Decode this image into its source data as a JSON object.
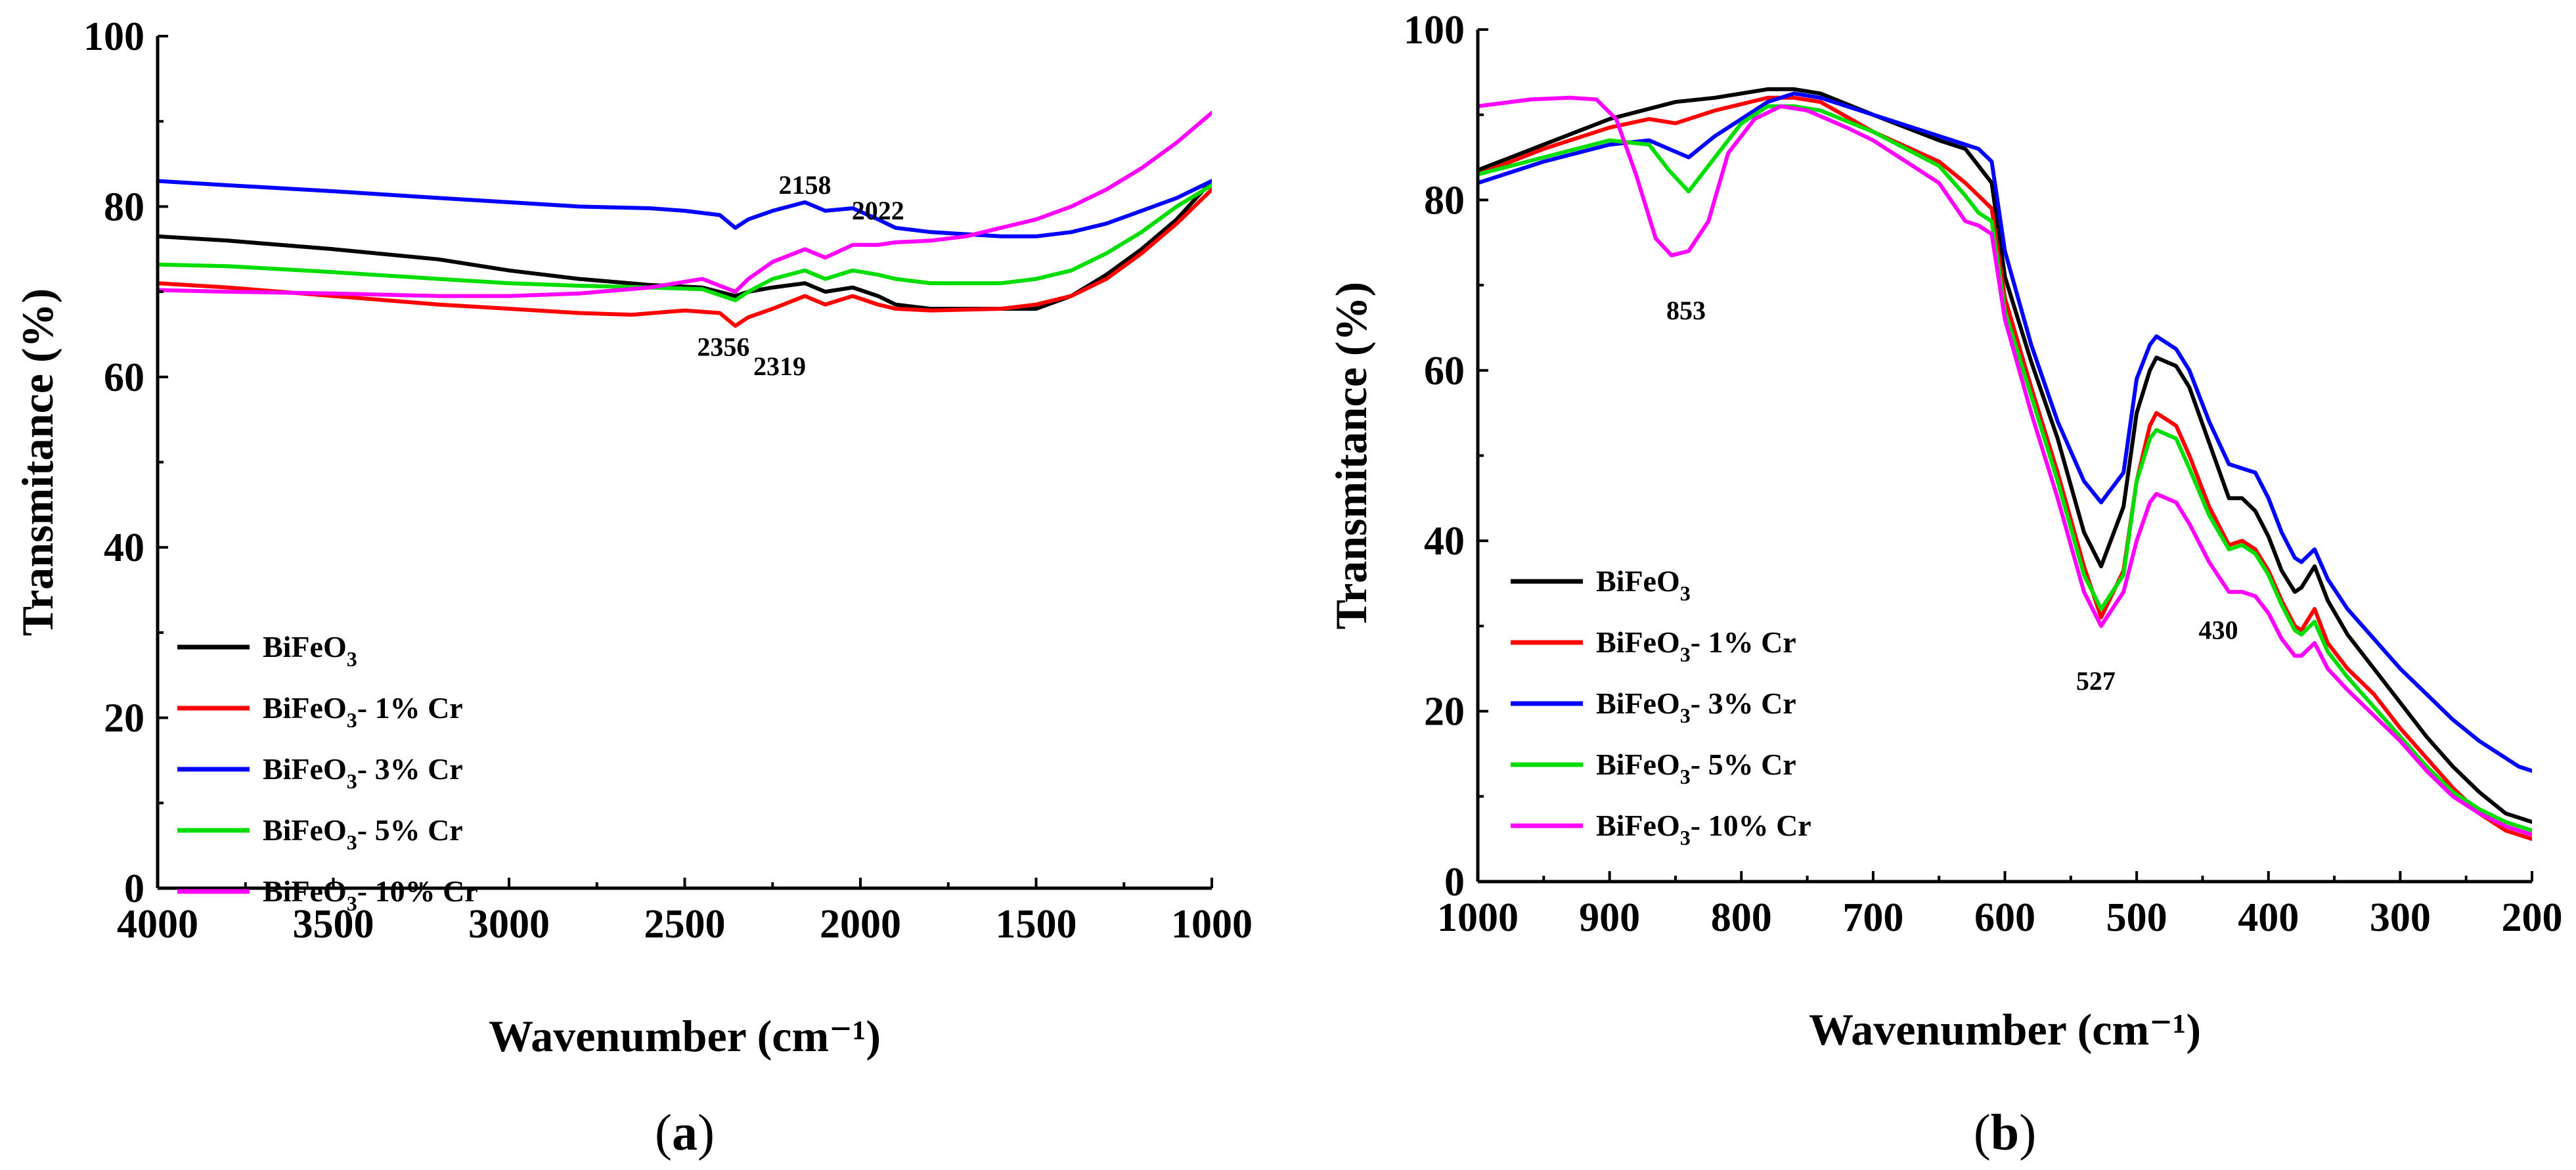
{
  "chart_data": [
    {
      "id": "a",
      "type": "line",
      "panel_label": "a",
      "xlabel": "Wavenumber (cm⁻¹)",
      "ylabel": "Transmitance (%)",
      "xlim": [
        4000,
        1000
      ],
      "ylim": [
        0,
        100
      ],
      "xticks": [
        4000,
        3500,
        3000,
        2500,
        2000,
        1500,
        1000
      ],
      "yticks": [
        0,
        20,
        40,
        60,
        80,
        100
      ],
      "legend_position": "bottom-left",
      "series": [
        {
          "name": "BiFeO3",
          "label_base": "BiFeO",
          "label_sub": "3",
          "label_suffix": "",
          "color": "#000000",
          "x": [
            4000,
            3800,
            3500,
            3200,
            3000,
            2800,
            2600,
            2450,
            2356,
            2319,
            2250,
            2158,
            2100,
            2022,
            1950,
            1900,
            1800,
            1600,
            1500,
            1400,
            1300,
            1200,
            1100,
            1000
          ],
          "y": [
            76.5,
            76,
            75,
            73.8,
            72.5,
            71.5,
            70.8,
            70.5,
            69.5,
            70,
            70.5,
            71,
            70,
            70.5,
            69.5,
            68.5,
            68,
            68,
            68,
            69.5,
            72,
            75,
            78.5,
            83
          ]
        },
        {
          "name": "BiFeO3- 1% Cr",
          "label_base": "BiFeO",
          "label_sub": "3",
          "label_suffix": "- 1% Cr",
          "color": "#ff0000",
          "x": [
            4000,
            3800,
            3500,
            3200,
            3000,
            2800,
            2650,
            2500,
            2400,
            2356,
            2319,
            2250,
            2158,
            2100,
            2022,
            1950,
            1900,
            1800,
            1600,
            1500,
            1400,
            1300,
            1200,
            1100,
            1000
          ],
          "y": [
            71,
            70.5,
            69.5,
            68.5,
            68,
            67.5,
            67.3,
            67.8,
            67.5,
            66,
            67,
            68,
            69.5,
            68.5,
            69.5,
            68.5,
            68,
            67.8,
            68,
            68.5,
            69.5,
            71.5,
            74.5,
            78,
            82
          ]
        },
        {
          "name": "BiFeO3- 3% Cr",
          "label_base": "BiFeO",
          "label_sub": "3",
          "label_suffix": "- 3% Cr",
          "color": "#0000ff",
          "x": [
            4000,
            3800,
            3500,
            3200,
            3000,
            2800,
            2600,
            2500,
            2400,
            2356,
            2319,
            2250,
            2158,
            2100,
            2022,
            1950,
            1900,
            1800,
            1600,
            1500,
            1400,
            1300,
            1200,
            1100,
            1000
          ],
          "y": [
            83,
            82.5,
            81.8,
            81,
            80.5,
            80,
            79.8,
            79.5,
            79,
            77.5,
            78.5,
            79.5,
            80.5,
            79.5,
            79.8,
            78.5,
            77.5,
            77,
            76.5,
            76.5,
            77,
            78,
            79.5,
            81,
            83
          ]
        },
        {
          "name": "BiFeO3- 5% Cr",
          "label_base": "BiFeO",
          "label_sub": "3",
          "label_suffix": "- 5% Cr",
          "color": "#00dd00",
          "x": [
            4000,
            3800,
            3500,
            3200,
            3000,
            2800,
            2600,
            2450,
            2356,
            2319,
            2250,
            2158,
            2100,
            2022,
            1950,
            1900,
            1800,
            1600,
            1500,
            1400,
            1300,
            1200,
            1100,
            1000
          ],
          "y": [
            73.2,
            73,
            72.3,
            71.5,
            71,
            70.7,
            70.5,
            70.3,
            69,
            70,
            71.5,
            72.5,
            71.5,
            72.5,
            72,
            71.5,
            71,
            71,
            71.5,
            72.5,
            74.5,
            77,
            80,
            82.5
          ]
        },
        {
          "name": "BiFeO3- 10% Cr",
          "label_base": "BiFeO",
          "label_sub": "3",
          "label_suffix": "- 10% Cr",
          "color": "#ff00ff",
          "x": [
            4000,
            3800,
            3500,
            3200,
            3000,
            2800,
            2600,
            2450,
            2356,
            2319,
            2250,
            2158,
            2100,
            2022,
            1950,
            1900,
            1800,
            1700,
            1600,
            1500,
            1400,
            1300,
            1200,
            1100,
            1000
          ],
          "y": [
            70.2,
            70,
            69.8,
            69.5,
            69.5,
            69.8,
            70.5,
            71.5,
            70,
            71.5,
            73.5,
            75,
            74,
            75.5,
            75.5,
            75.8,
            76,
            76.5,
            77.5,
            78.5,
            80,
            82,
            84.5,
            87.5,
            91
          ]
        }
      ],
      "annotations": [
        {
          "text": "2158",
          "x": 2158,
          "y": 81.5
        },
        {
          "text": "2022",
          "x": 1950,
          "y": 78.5
        },
        {
          "text": "2356",
          "x": 2390,
          "y": 62.5
        },
        {
          "text": "2319",
          "x": 2230,
          "y": 60.2
        }
      ]
    },
    {
      "id": "b",
      "type": "line",
      "panel_label": "b",
      "xlabel": "Wavenumber (cm⁻¹)",
      "ylabel": "Transmitance (%)",
      "xlim": [
        1000,
        200
      ],
      "ylim": [
        0,
        100
      ],
      "xticks": [
        1000,
        900,
        800,
        700,
        600,
        500,
        400,
        300,
        200
      ],
      "yticks": [
        0,
        20,
        40,
        60,
        80,
        100
      ],
      "legend_position": "bottom-left",
      "series": [
        {
          "name": "BiFeO3",
          "label_base": "BiFeO",
          "label_sub": "3",
          "label_suffix": "",
          "color": "#000000",
          "x": [
            1000,
            950,
            900,
            850,
            820,
            780,
            760,
            740,
            700,
            650,
            630,
            620,
            610,
            600,
            580,
            560,
            540,
            527,
            510,
            500,
            490,
            485,
            470,
            460,
            445,
            430,
            420,
            410,
            400,
            390,
            380,
            375,
            365,
            355,
            340,
            320,
            300,
            280,
            260,
            240,
            220,
            210,
            200
          ],
          "y": [
            83.5,
            86.5,
            89.5,
            91.5,
            92,
            93,
            93,
            92.5,
            90,
            87,
            86,
            84,
            82,
            71,
            61,
            52,
            41,
            37,
            44,
            55,
            60,
            61.5,
            60.5,
            58,
            51.5,
            45,
            45,
            43.5,
            40.5,
            36.5,
            34,
            34.5,
            37,
            33,
            29,
            25,
            21,
            17,
            13.5,
            10.5,
            8,
            7.5,
            7
          ]
        },
        {
          "name": "BiFeO3- 1% Cr",
          "label_base": "BiFeO",
          "label_sub": "3",
          "label_suffix": "- 1% Cr",
          "color": "#ff0000",
          "x": [
            1000,
            950,
            900,
            870,
            850,
            820,
            780,
            760,
            740,
            700,
            650,
            630,
            620,
            610,
            600,
            580,
            560,
            540,
            527,
            510,
            500,
            490,
            485,
            470,
            460,
            445,
            430,
            420,
            410,
            400,
            390,
            380,
            375,
            365,
            355,
            340,
            320,
            300,
            280,
            260,
            240,
            220,
            210,
            200
          ],
          "y": [
            83,
            86,
            88.5,
            89.5,
            89,
            90.5,
            92,
            92,
            91.5,
            88,
            84.5,
            82,
            80.5,
            79,
            68.5,
            58,
            48,
            37,
            31,
            36.5,
            47,
            53.5,
            55,
            53.5,
            50,
            44,
            39.5,
            40,
            39,
            36.5,
            33,
            30,
            29.5,
            32,
            28,
            25,
            22,
            18,
            14.5,
            11,
            8,
            6,
            5.5,
            5
          ]
        },
        {
          "name": "BiFeO3- 3% Cr",
          "label_base": "BiFeO",
          "label_sub": "3",
          "label_suffix": "- 3% Cr",
          "color": "#0000ff",
          "x": [
            1000,
            950,
            900,
            870,
            855,
            840,
            820,
            800,
            780,
            760,
            740,
            700,
            650,
            630,
            620,
            610,
            600,
            580,
            560,
            540,
            527,
            510,
            500,
            490,
            485,
            470,
            460,
            445,
            430,
            420,
            410,
            400,
            390,
            380,
            375,
            365,
            355,
            340,
            320,
            300,
            280,
            260,
            240,
            220,
            210,
            200
          ],
          "y": [
            82,
            84.5,
            86.5,
            87,
            86,
            85,
            87.5,
            89.5,
            91.5,
            92.5,
            92,
            90,
            87.5,
            86.5,
            86,
            84.5,
            74,
            63,
            54,
            47,
            44.5,
            48,
            59,
            63,
            64,
            62.5,
            60,
            54,
            49,
            48.5,
            48,
            45,
            41,
            38,
            37.5,
            39,
            35.5,
            32,
            28.5,
            25,
            22,
            19,
            16.5,
            14.5,
            13.5,
            13
          ]
        },
        {
          "name": "BiFeO3- 5% Cr",
          "label_base": "BiFeO",
          "label_sub": "3",
          "label_suffix": "- 5% Cr",
          "color": "#00dd00",
          "x": [
            1000,
            950,
            900,
            870,
            855,
            840,
            820,
            800,
            780,
            760,
            740,
            700,
            650,
            630,
            620,
            610,
            600,
            580,
            560,
            540,
            527,
            510,
            500,
            490,
            485,
            470,
            460,
            445,
            430,
            420,
            410,
            400,
            390,
            380,
            375,
            365,
            355,
            340,
            320,
            300,
            280,
            260,
            240,
            220,
            210,
            200
          ],
          "y": [
            83,
            85,
            87,
            86.5,
            83.5,
            81,
            85,
            89,
            91,
            91,
            90.5,
            88,
            84,
            80.5,
            78.5,
            77.5,
            67,
            57,
            47,
            36,
            32,
            36,
            47,
            52,
            53,
            52,
            48.5,
            43,
            39,
            39.5,
            38.5,
            36,
            32.5,
            29.5,
            29,
            30.5,
            27,
            24,
            20.5,
            17,
            13.5,
            10.5,
            8.5,
            7,
            6.5,
            6
          ]
        },
        {
          "name": "BiFeO3- 10% Cr",
          "label_base": "BiFeO",
          "label_sub": "3",
          "label_suffix": "- 10% Cr",
          "color": "#ff00ff",
          "x": [
            1000,
            960,
            930,
            910,
            895,
            880,
            865,
            853,
            840,
            825,
            810,
            790,
            770,
            750,
            720,
            700,
            650,
            630,
            620,
            610,
            600,
            580,
            560,
            540,
            527,
            510,
            500,
            490,
            485,
            470,
            460,
            445,
            430,
            420,
            410,
            400,
            390,
            380,
            375,
            365,
            355,
            340,
            320,
            300,
            280,
            260,
            240,
            220,
            210,
            200
          ],
          "y": [
            91,
            91.8,
            92,
            91.8,
            89.5,
            83,
            75.5,
            73.5,
            74,
            77.5,
            85.5,
            89.5,
            91,
            90.5,
            88.5,
            87,
            82,
            77.5,
            77,
            76,
            66,
            55,
            45,
            34,
            30,
            34,
            40,
            44.5,
            45.5,
            44.5,
            42,
            37.5,
            34,
            34,
            33.5,
            31.5,
            28.5,
            26.5,
            26.5,
            28,
            25,
            22.5,
            19.5,
            16.5,
            13,
            10,
            8,
            6.5,
            6,
            5.5
          ]
        }
      ],
      "annotations": [
        {
          "text": "853",
          "x": 842,
          "y": 66
        },
        {
          "text": "527",
          "x": 531,
          "y": 22.5
        },
        {
          "text": "430",
          "x": 438,
          "y": 28.5
        }
      ]
    }
  ]
}
